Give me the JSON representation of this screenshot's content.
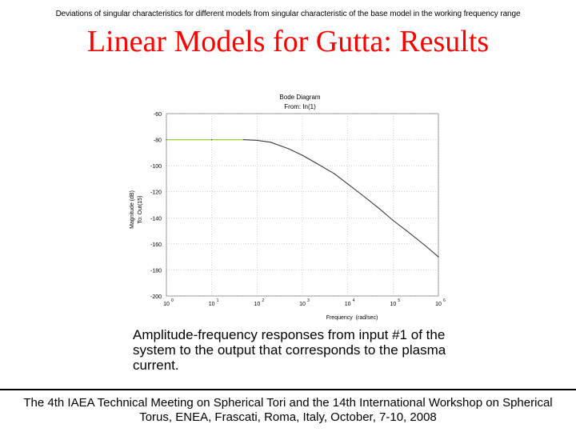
{
  "slide": {
    "top_caption": "Deviations of singular characteristics for different models from singular characteristic of the base model in the working frequency range",
    "title": "Linear Models for Gutta: Results",
    "caption": "Amplitude-frequency responses from input #1 of the system to the output that corresponds to the plasma current.",
    "footer": "The 4th IAEA Technical Meeting on Spherical Tori and the 14th International Workshop on Spherical Torus, ENEA, Frascati, Roma, Italy, October, 7-10, 2008",
    "colors": {
      "title": "#ff0000",
      "curve": "#3a3a3a",
      "curve_low": "#9acd32"
    }
  },
  "chart_data": {
    "type": "line",
    "title": "Bode Diagram",
    "subtitle": "From: In(1)",
    "xlabel": "Frequency  (rad/sec)",
    "ylabel": "Magnitude (dB)",
    "ylabel2": "To: Out(15)",
    "xscale": "log",
    "xlim": [
      1,
      1000000
    ],
    "ylim": [
      -200,
      -60
    ],
    "grid": true,
    "x_ticks": [
      {
        "value": 1,
        "base": "10",
        "exp": "0"
      },
      {
        "value": 10,
        "base": "10",
        "exp": "1"
      },
      {
        "value": 100,
        "base": "10",
        "exp": "2"
      },
      {
        "value": 1000,
        "base": "10",
        "exp": "3"
      },
      {
        "value": 10000,
        "base": "10",
        "exp": "4"
      },
      {
        "value": 100000,
        "base": "10",
        "exp": "5"
      },
      {
        "value": 1000000,
        "base": "10",
        "exp": "6"
      }
    ],
    "y_ticks": [
      -60,
      -80,
      -100,
      -120,
      -140,
      -160,
      -180,
      -200
    ],
    "series": [
      {
        "x": [
          1,
          10,
          50,
          100,
          200,
          500,
          1000,
          2000,
          5000,
          10000,
          20000,
          50000,
          100000,
          200000,
          500000,
          1000000
        ],
        "y": [
          -80,
          -80,
          -80,
          -80.5,
          -82,
          -87,
          -92,
          -98,
          -106,
          -114,
          -122,
          -133,
          -142,
          -150,
          -161,
          -170
        ]
      }
    ]
  }
}
